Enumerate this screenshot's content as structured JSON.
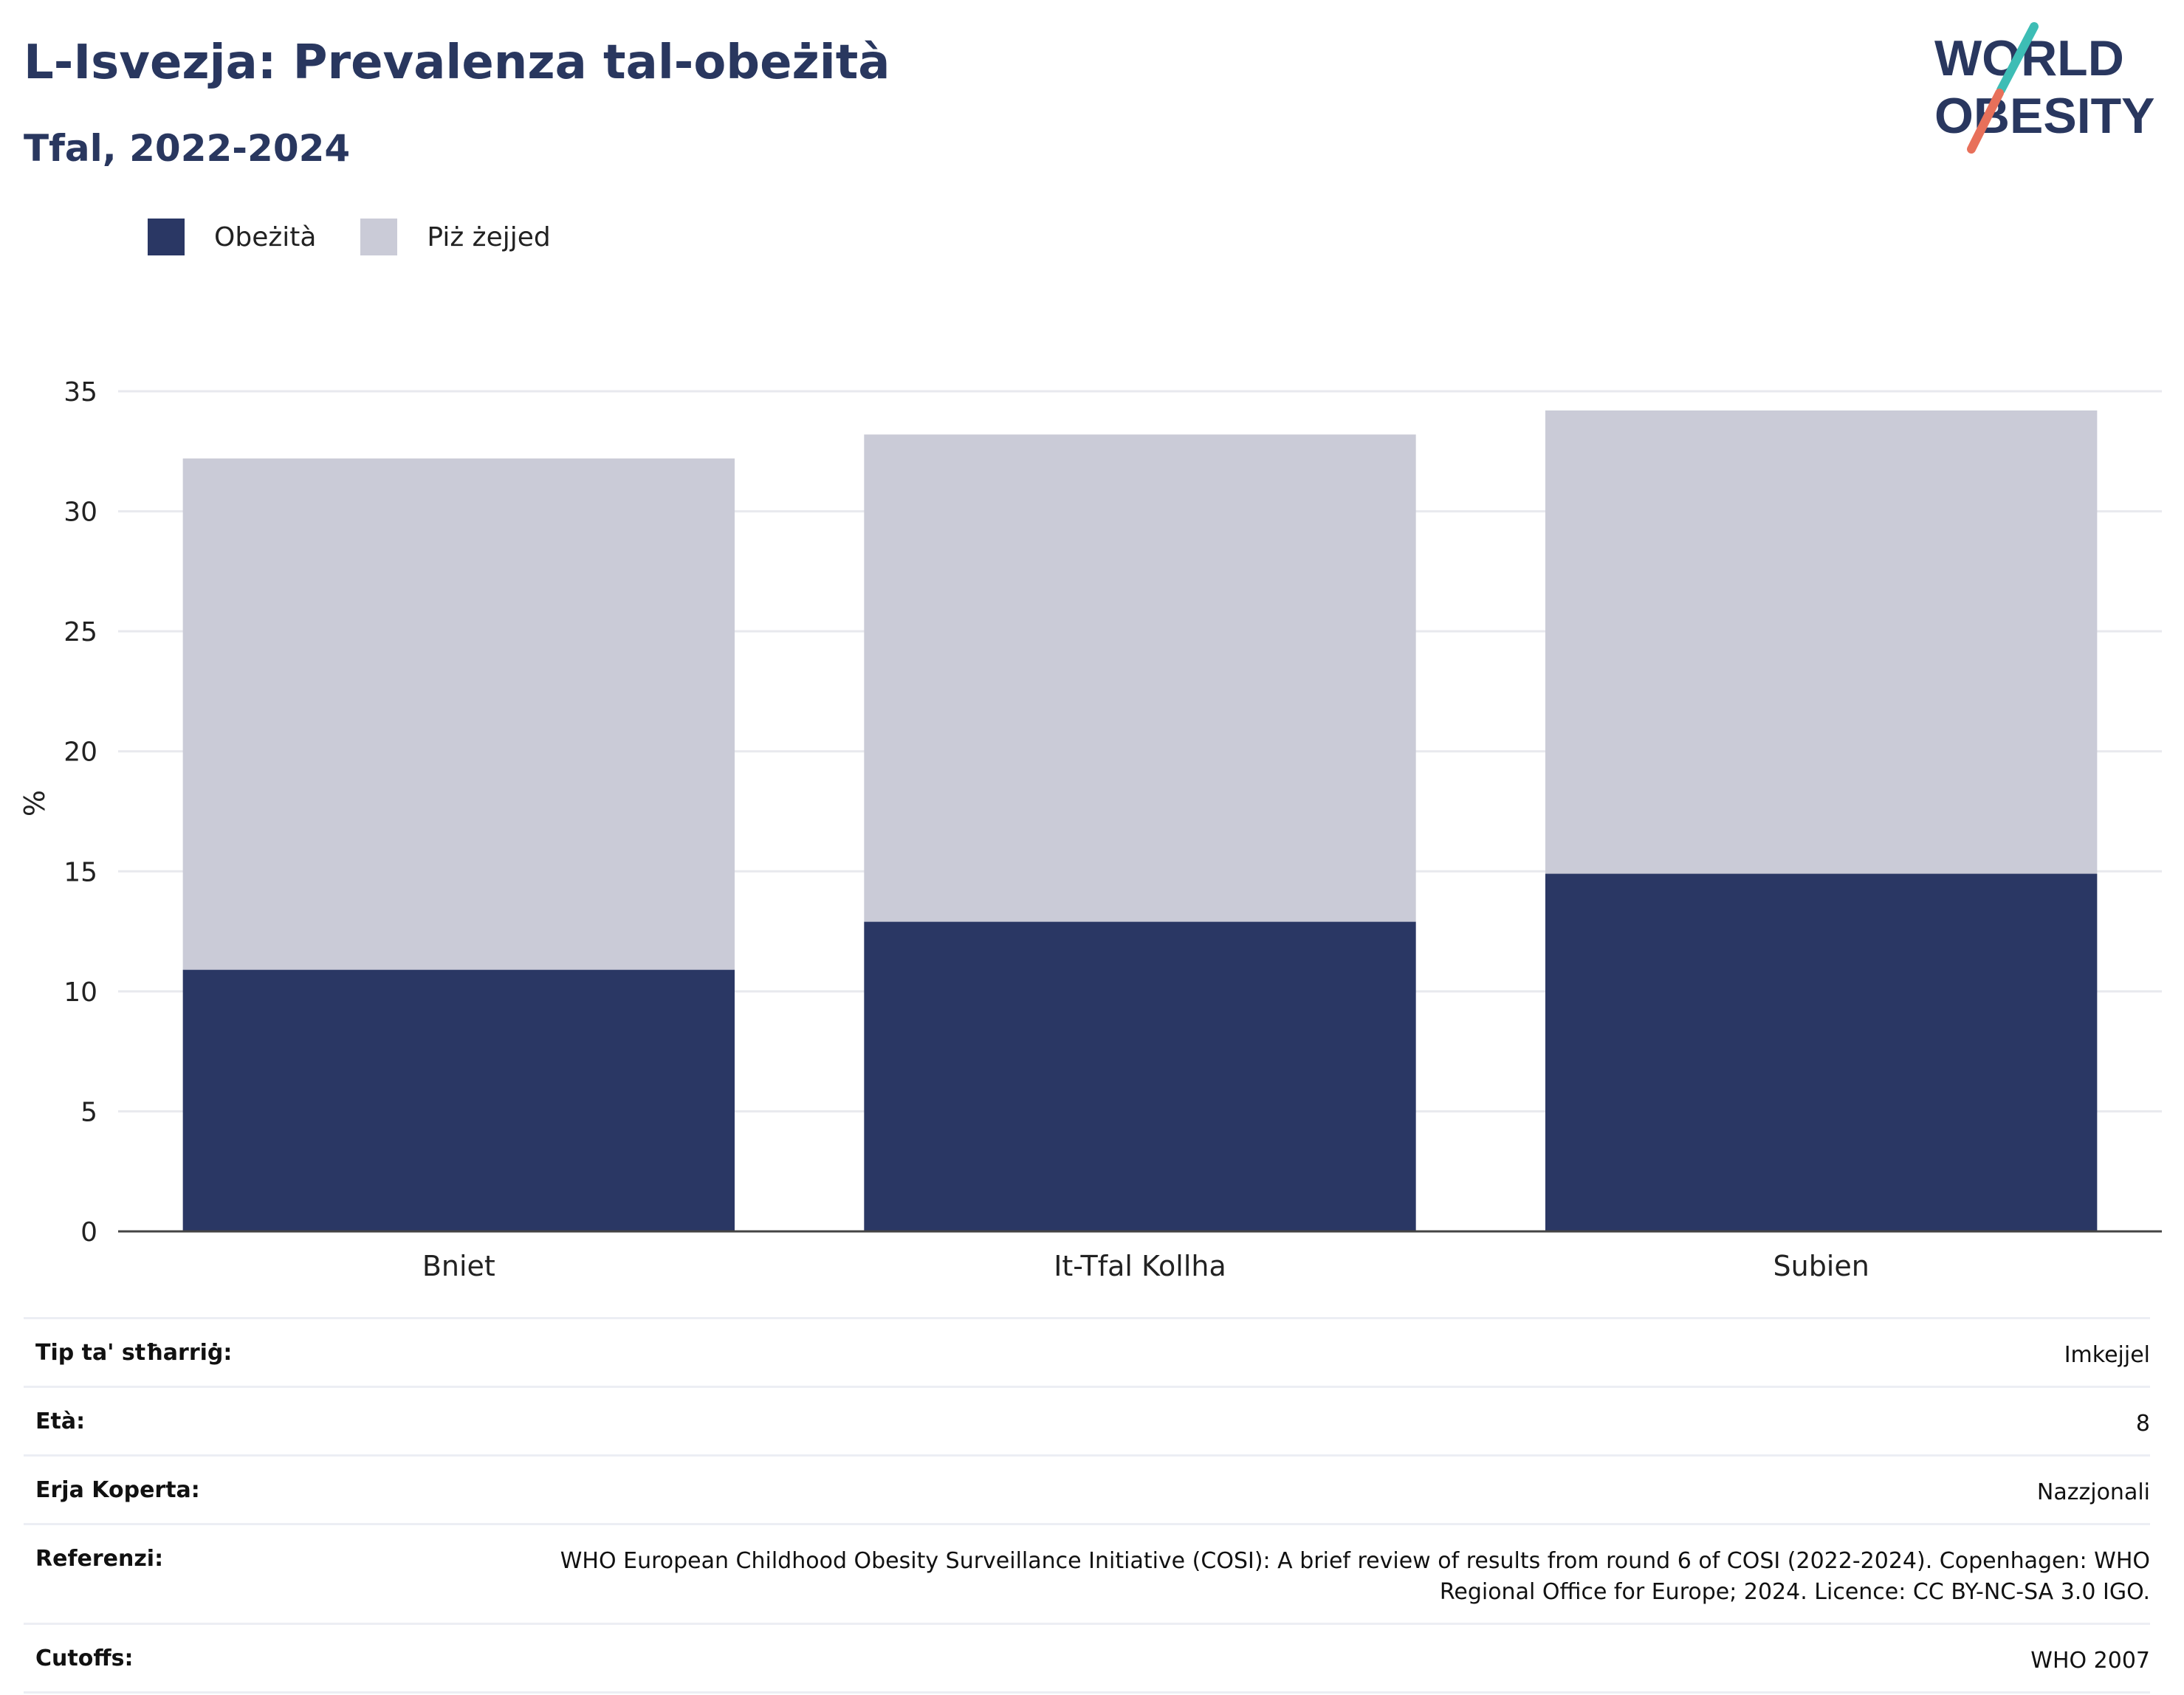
{
  "header": {
    "title": "L-Isvezja: Prevalenza tal-obeżità",
    "subtitle": "Tfal, 2022-2024",
    "logo_line1": "WORLD",
    "logo_line2": "OBESITY"
  },
  "colors": {
    "obesity": "#2a3764",
    "overweight": "#cacbd7",
    "title": "#29375f",
    "logo_teal": "#3dbdb5",
    "logo_coral": "#e8705a"
  },
  "chart_data": {
    "type": "bar",
    "stacked": true,
    "categories": [
      "Bniet",
      "It-Tfal Kollha",
      "Subien"
    ],
    "series": [
      {
        "name": "Obeżità",
        "values": [
          10.9,
          12.9,
          14.9
        ]
      },
      {
        "name": "Piż żejjed",
        "values": [
          21.3,
          20.3,
          19.3
        ]
      }
    ],
    "ylabel": "%",
    "ylim": [
      0,
      35
    ],
    "yticks": [
      0,
      5,
      10,
      15,
      20,
      25,
      30,
      35
    ],
    "grid": true,
    "legend": "top-left"
  },
  "info": [
    {
      "label": "Tip ta' stħarriġ:",
      "value": "Imkejjel"
    },
    {
      "label": "Età:",
      "value": "8"
    },
    {
      "label": "Erja Koperta:",
      "value": "Nazzjonali"
    },
    {
      "label": "Referenzi:",
      "value": "WHO European Childhood Obesity Surveillance Initiative (COSI): A brief review of results from round 6 of COSI (2022-2024). Copenhagen: WHO Regional Office for Europe; 2024. Licence: CC BY-NC-SA 3.0 IGO."
    },
    {
      "label": "Cutoffs:",
      "value": "WHO 2007"
    }
  ]
}
